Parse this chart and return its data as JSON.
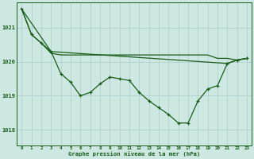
{
  "background_color": "#cce8e0",
  "grid_color": "#aacccc",
  "line_color": "#1a5c1a",
  "marker_color": "#1a5c1a",
  "xlabel": "Graphe pression niveau de la mer (hPa)",
  "xlabel_color": "#1a5c1a",
  "ylabel_ticks": [
    1018,
    1019,
    1020,
    1021
  ],
  "xlim": [
    -0.5,
    23.5
  ],
  "ylim": [
    1017.55,
    1021.75
  ],
  "xticks": [
    0,
    1,
    2,
    3,
    4,
    5,
    6,
    7,
    8,
    9,
    10,
    11,
    12,
    13,
    14,
    15,
    16,
    17,
    18,
    19,
    20,
    21,
    22,
    23
  ],
  "series1_x": [
    0,
    1,
    2,
    3,
    4,
    5,
    6,
    7,
    8,
    9,
    10,
    11,
    12,
    13,
    14,
    15,
    16,
    17,
    18,
    19,
    20,
    21,
    22,
    23
  ],
  "series1_y": [
    1021.55,
    1020.8,
    1020.55,
    1020.3,
    1019.65,
    1019.4,
    1019.0,
    1019.1,
    1019.35,
    1019.55,
    1019.5,
    1019.45,
    1019.1,
    1018.85,
    1018.65,
    1018.45,
    1018.2,
    1018.2,
    1018.85,
    1019.2,
    1019.3,
    1019.95,
    1020.05,
    1020.1
  ],
  "series2_x": [
    0,
    1,
    2,
    3,
    4,
    5,
    6,
    7,
    8,
    9,
    10,
    11,
    12,
    13,
    14,
    15,
    16,
    17,
    18,
    19,
    20,
    21,
    22,
    23
  ],
  "series2_y": [
    1021.55,
    1020.8,
    1020.55,
    1020.25,
    1020.2,
    1020.2,
    1020.2,
    1020.2,
    1020.2,
    1020.2,
    1020.2,
    1020.2,
    1020.2,
    1020.2,
    1020.2,
    1020.2,
    1020.2,
    1020.2,
    1020.2,
    1020.2,
    1020.1,
    1020.1,
    1020.05,
    1020.1
  ],
  "series3_x": [
    0,
    3,
    21,
    22,
    23
  ],
  "series3_y": [
    1021.55,
    1020.3,
    1019.95,
    1020.05,
    1020.1
  ]
}
